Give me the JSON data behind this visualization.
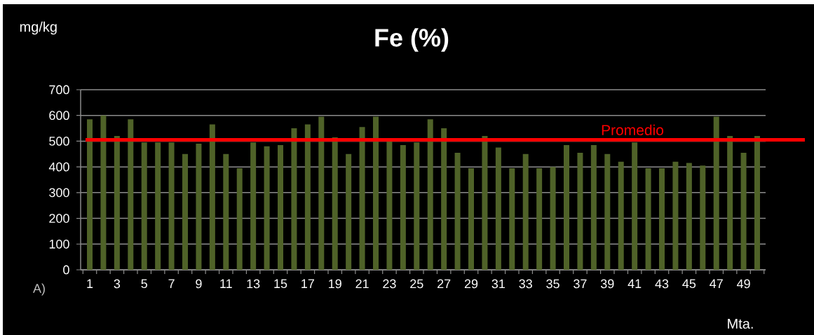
{
  "chart_data": {
    "type": "bar",
    "title": "Fe (%)",
    "ylabel": "mg/kg",
    "xlabel": "Mta.",
    "annotations": [
      "A)"
    ],
    "categories": [
      "1",
      null,
      "3",
      null,
      "5",
      null,
      "7",
      null,
      "9",
      null,
      "11",
      null,
      "13",
      null,
      "15",
      null,
      "17",
      null,
      "19",
      null,
      "21",
      null,
      "23",
      null,
      "25",
      null,
      "27",
      null,
      "29",
      null,
      "31",
      null,
      "33",
      null,
      "35",
      null,
      "37",
      null,
      "39",
      null,
      "41",
      null,
      "43",
      null,
      "45",
      null,
      "47",
      null,
      "49",
      null
    ],
    "values": [
      585,
      600,
      520,
      585,
      495,
      495,
      495,
      450,
      490,
      565,
      450,
      395,
      495,
      480,
      485,
      550,
      565,
      595,
      515,
      450,
      555,
      595,
      500,
      485,
      495,
      585,
      550,
      455,
      395,
      520,
      475,
      395,
      450,
      395,
      400,
      485,
      455,
      485,
      450,
      420,
      495,
      395,
      395,
      420,
      415,
      405,
      595,
      520,
      455,
      520
    ],
    "color": "#4f6228",
    "ylim": [
      0,
      700
    ],
    "yticks": [
      0,
      100,
      200,
      300,
      400,
      500,
      600,
      700
    ],
    "grid": "y",
    "ref_lines": [
      {
        "axis": "y",
        "value": 505,
        "label": "Promedio",
        "color": "#ff0000"
      }
    ]
  }
}
